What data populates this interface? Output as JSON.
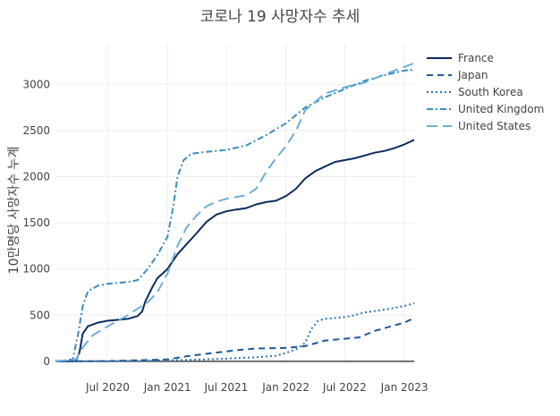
{
  "chart_data": {
    "type": "line",
    "title": "코로나 19 사망자수 추세",
    "xlabel": "",
    "ylabel": "10만명당 사망자수 누계",
    "x_range": [
      "2020-01-22",
      "2023-01-31"
    ],
    "ylim": [
      -30,
      3430
    ],
    "y_ticks": [
      0,
      500,
      1000,
      1500,
      2000,
      2500,
      3000
    ],
    "x_ticks": [
      {
        "date": "2020-07-01",
        "label": "Jul 2020"
      },
      {
        "date": "2021-01-01",
        "label": "Jan 2021"
      },
      {
        "date": "2021-07-01",
        "label": "Jul 2021"
      },
      {
        "date": "2022-01-01",
        "label": "Jan 2022"
      },
      {
        "date": "2022-07-01",
        "label": "Jul 2022"
      },
      {
        "date": "2023-01-01",
        "label": "Jan 2023"
      }
    ],
    "grid": true,
    "legend_position": "top-right",
    "series": [
      {
        "name": "France",
        "color": "#0d2c5e",
        "dash": "solid",
        "x": [
          "2020-01-22",
          "2020-03-10",
          "2020-03-25",
          "2020-04-05",
          "2020-04-15",
          "2020-05-01",
          "2020-06-01",
          "2020-07-01",
          "2020-08-01",
          "2020-09-01",
          "2020-10-01",
          "2020-10-15",
          "2020-10-25",
          "2020-11-15",
          "2020-12-01",
          "2021-01-01",
          "2021-02-01",
          "2021-03-01",
          "2021-04-01",
          "2021-05-01",
          "2021-06-01",
          "2021-07-01",
          "2021-08-01",
          "2021-09-01",
          "2021-10-01",
          "2021-11-01",
          "2021-12-01",
          "2022-01-01",
          "2022-02-01",
          "2022-03-01",
          "2022-04-01",
          "2022-05-01",
          "2022-06-01",
          "2022-07-01",
          "2022-08-01",
          "2022-09-01",
          "2022-10-01",
          "2022-11-01",
          "2022-12-01",
          "2023-01-01",
          "2023-01-31"
        ],
        "y": [
          0,
          0,
          5,
          100,
          300,
          380,
          420,
          440,
          450,
          460,
          490,
          540,
          650,
          800,
          900,
          1000,
          1160,
          1270,
          1390,
          1510,
          1590,
          1625,
          1645,
          1660,
          1700,
          1725,
          1740,
          1790,
          1870,
          1980,
          2060,
          2110,
          2160,
          2180,
          2200,
          2230,
          2260,
          2280,
          2310,
          2350,
          2400
        ]
      },
      {
        "name": "Japan",
        "color": "#1f5799",
        "dash": "dash",
        "x": [
          "2020-01-22",
          "2020-07-01",
          "2021-01-01",
          "2021-03-01",
          "2021-06-01",
          "2021-08-01",
          "2021-10-01",
          "2022-01-01",
          "2022-03-01",
          "2022-05-01",
          "2022-07-01",
          "2022-08-15",
          "2022-10-01",
          "2022-12-01",
          "2023-01-01",
          "2023-01-31"
        ],
        "y": [
          0,
          3,
          20,
          55,
          95,
          120,
          140,
          145,
          165,
          225,
          245,
          260,
          330,
          390,
          420,
          470
        ]
      },
      {
        "name": "South Korea",
        "color": "#2d73b5",
        "dash": "dot",
        "x": [
          "2020-01-22",
          "2020-07-01",
          "2021-01-01",
          "2021-06-01",
          "2021-10-01",
          "2021-12-01",
          "2022-01-01",
          "2022-02-01",
          "2022-03-01",
          "2022-03-20",
          "2022-04-10",
          "2022-05-01",
          "2022-07-01",
          "2022-08-01",
          "2022-09-01",
          "2022-11-01",
          "2023-01-01",
          "2023-01-31"
        ],
        "y": [
          0,
          2,
          10,
          25,
          45,
          60,
          90,
          130,
          200,
          350,
          440,
          460,
          480,
          500,
          530,
          560,
          600,
          630
        ]
      },
      {
        "name": "United Kingdom",
        "color": "#3b8ec2",
        "dash": "dashdot",
        "x": [
          "2020-01-22",
          "2020-03-15",
          "2020-04-01",
          "2020-04-15",
          "2020-05-01",
          "2020-06-01",
          "2020-07-01",
          "2020-08-01",
          "2020-09-01",
          "2020-10-01",
          "2020-11-01",
          "2020-12-01",
          "2021-01-01",
          "2021-01-20",
          "2021-02-01",
          "2021-02-20",
          "2021-03-15",
          "2021-05-01",
          "2021-07-01",
          "2021-09-01",
          "2021-11-01",
          "2022-01-01",
          "2022-03-01",
          "2022-05-01",
          "2022-07-01",
          "2022-09-01",
          "2022-11-01",
          "2023-01-01",
          "2023-01-31"
        ],
        "y": [
          0,
          20,
          300,
          600,
          760,
          820,
          840,
          850,
          860,
          880,
          1000,
          1150,
          1350,
          1700,
          2000,
          2180,
          2250,
          2270,
          2290,
          2340,
          2450,
          2580,
          2750,
          2860,
          2950,
          3040,
          3100,
          3150,
          3160
        ]
      },
      {
        "name": "United States",
        "color": "#6bafd6",
        "dash": "longdash",
        "x": [
          "2020-01-22",
          "2020-03-25",
          "2020-04-15",
          "2020-05-15",
          "2020-07-01",
          "2020-08-01",
          "2020-09-01",
          "2020-10-01",
          "2020-11-01",
          "2020-12-01",
          "2021-01-01",
          "2021-02-01",
          "2021-03-01",
          "2021-04-01",
          "2021-05-01",
          "2021-06-01",
          "2021-07-01",
          "2021-08-01",
          "2021-09-01",
          "2021-10-01",
          "2021-11-01",
          "2021-12-01",
          "2022-01-01",
          "2022-02-01",
          "2022-03-01",
          "2022-05-01",
          "2022-07-01",
          "2022-09-01",
          "2022-11-01",
          "2023-01-01",
          "2023-01-31"
        ],
        "y": [
          0,
          20,
          150,
          280,
          380,
          440,
          500,
          570,
          640,
          750,
          950,
          1250,
          1450,
          1580,
          1680,
          1730,
          1760,
          1780,
          1800,
          1870,
          2050,
          2200,
          2330,
          2500,
          2720,
          2900,
          2970,
          3020,
          3110,
          3190,
          3230
        ]
      }
    ]
  }
}
